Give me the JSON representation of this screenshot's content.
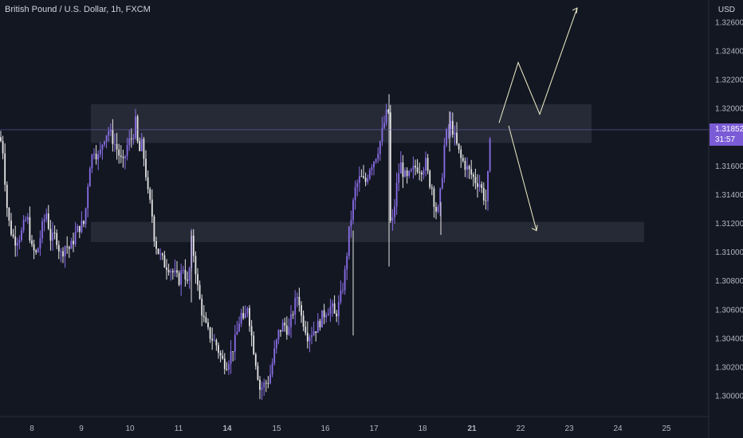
{
  "header": {
    "symbol": "British Pound / U.S. Dollar, 1h, FXCM",
    "currency": "USD"
  },
  "price_tag": {
    "price": "1.31852",
    "countdown": "31:57"
  },
  "colors": {
    "background": "#131722",
    "candle_up": "#8a6ee8",
    "candle_down": "#e6e6e6",
    "zone": "#2a2e39",
    "projection": "#f0f0c8",
    "axis_text": "#b2b5be"
  },
  "chart_data": {
    "type": "candlestick",
    "y_range": [
      1.2995,
      1.3275
    ],
    "y_ticks": [
      "1.32600",
      "1.32400",
      "1.32200",
      "1.32000",
      "1.31800",
      "1.31600",
      "1.31400",
      "1.31200",
      "1.31000",
      "1.30800",
      "1.30600",
      "1.30400",
      "1.30200",
      "1.30000"
    ],
    "x_ticks": [
      "8",
      "9",
      "10",
      "11",
      "14",
      "15",
      "16",
      "17",
      "18",
      "21",
      "22",
      "23",
      "24",
      "25"
    ],
    "current_price": 1.31852,
    "zones": [
      {
        "from_day": "9",
        "to_day": "23",
        "low": 1.3176,
        "high": 1.3203
      },
      {
        "from_day": "9",
        "to_day": "25",
        "low": 1.3107,
        "high": 1.3121
      }
    ],
    "projections": [
      {
        "direction": "up",
        "path": [
          1.319,
          1.3232,
          1.3196,
          1.327
        ]
      },
      {
        "direction": "down",
        "path": [
          1.3188,
          1.3115
        ]
      }
    ],
    "path_points": [
      [
        0,
        1.318
      ],
      [
        4,
        1.317
      ],
      [
        8,
        1.3135
      ],
      [
        12,
        1.3118
      ],
      [
        18,
        1.3108
      ],
      [
        26,
        1.3112
      ],
      [
        34,
        1.3125
      ],
      [
        40,
        1.3102
      ],
      [
        46,
        1.3098
      ],
      [
        52,
        1.3115
      ],
      [
        58,
        1.3128
      ],
      [
        64,
        1.3108
      ],
      [
        70,
        1.3112
      ],
      [
        76,
        1.3098
      ],
      [
        82,
        1.3105
      ],
      [
        88,
        1.3102
      ],
      [
        94,
        1.3112
      ],
      [
        100,
        1.3118
      ],
      [
        106,
        1.312
      ],
      [
        112,
        1.316
      ],
      [
        118,
        1.3172
      ],
      [
        124,
        1.3165
      ],
      [
        130,
        1.318
      ],
      [
        136,
        1.3185
      ],
      [
        142,
        1.3178
      ],
      [
        148,
        1.317
      ],
      [
        154,
        1.316
      ],
      [
        160,
        1.3175
      ],
      [
        166,
        1.318
      ],
      [
        170,
        1.319
      ],
      [
        174,
        1.3168
      ],
      [
        178,
        1.3175
      ],
      [
        182,
        1.316
      ],
      [
        186,
        1.3138
      ],
      [
        190,
        1.313
      ],
      [
        194,
        1.3108
      ],
      [
        200,
        1.3098
      ],
      [
        206,
        1.3092
      ],
      [
        212,
        1.309
      ],
      [
        218,
        1.3085
      ],
      [
        224,
        1.308
      ],
      [
        230,
        1.309
      ],
      [
        236,
        1.3075
      ],
      [
        240,
        1.3108
      ],
      [
        244,
        1.3095
      ],
      [
        248,
        1.3075
      ],
      [
        252,
        1.3062
      ],
      [
        256,
        1.3052
      ],
      [
        260,
        1.3045
      ],
      [
        266,
        1.304
      ],
      [
        272,
        1.3035
      ],
      [
        278,
        1.3025
      ],
      [
        284,
        1.3022
      ],
      [
        290,
        1.303
      ],
      [
        296,
        1.304
      ],
      [
        302,
        1.3058
      ],
      [
        306,
        1.3048
      ],
      [
        310,
        1.3065
      ],
      [
        316,
        1.304
      ],
      [
        322,
        1.302
      ],
      [
        326,
        1.3005
      ],
      [
        332,
        1.3008
      ],
      [
        338,
        1.3012
      ],
      [
        344,
        1.303
      ],
      [
        350,
        1.3045
      ],
      [
        356,
        1.305
      ],
      [
        362,
        1.3045
      ],
      [
        368,
        1.306
      ],
      [
        374,
        1.3072
      ],
      [
        378,
        1.3055
      ],
      [
        382,
        1.305
      ],
      [
        386,
        1.3042
      ],
      [
        392,
        1.3045
      ],
      [
        398,
        1.3048
      ],
      [
        404,
        1.3055
      ],
      [
        410,
        1.306
      ],
      [
        416,
        1.3062
      ],
      [
        420,
        1.3055
      ],
      [
        426,
        1.3065
      ],
      [
        432,
        1.3082
      ],
      [
        438,
        1.3115
      ],
      [
        442,
        1.313
      ],
      [
        446,
        1.3145
      ],
      [
        452,
        1.3152
      ],
      [
        458,
        1.3148
      ],
      [
        464,
        1.316
      ],
      [
        470,
        1.3165
      ],
      [
        476,
        1.3175
      ],
      [
        480,
        1.3185
      ],
      [
        484,
        1.3195
      ],
      [
        488,
        1.3198
      ],
      [
        490,
        1.3112
      ],
      [
        494,
        1.3128
      ],
      [
        498,
        1.3148
      ],
      [
        502,
        1.3162
      ],
      [
        506,
        1.3155
      ],
      [
        510,
        1.315
      ],
      [
        516,
        1.3155
      ],
      [
        522,
        1.316
      ],
      [
        528,
        1.3158
      ],
      [
        534,
        1.3162
      ],
      [
        538,
        1.315
      ],
      [
        542,
        1.3145
      ],
      [
        546,
        1.313
      ],
      [
        550,
        1.3128
      ],
      [
        554,
        1.315
      ],
      [
        558,
        1.3178
      ],
      [
        562,
        1.3185
      ],
      [
        566,
        1.319
      ],
      [
        570,
        1.318
      ],
      [
        574,
        1.3172
      ],
      [
        578,
        1.3165
      ],
      [
        582,
        1.3162
      ],
      [
        586,
        1.3158
      ],
      [
        590,
        1.3155
      ],
      [
        596,
        1.315
      ],
      [
        602,
        1.3148
      ],
      [
        606,
        1.314
      ],
      [
        610,
        1.3135
      ],
      [
        614,
        1.317
      ],
      [
        616,
        1.3185
      ]
    ]
  }
}
